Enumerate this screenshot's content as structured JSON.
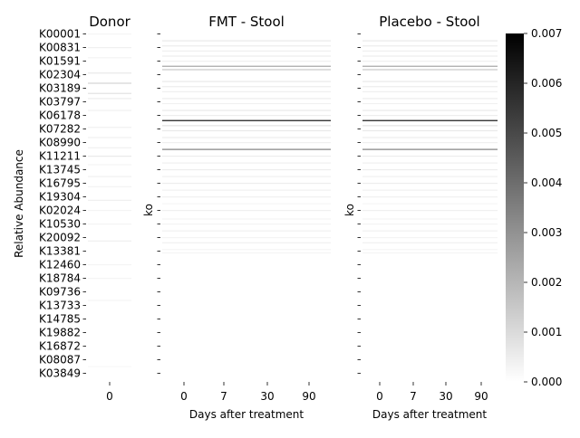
{
  "chart_data": [
    {
      "type": "heatmap",
      "title": "Donor",
      "ylabel": "Relative Abundance",
      "xlabel": "",
      "x_ticks": [
        "0"
      ],
      "y_ticks": [
        "K00001",
        "K00831",
        "K01591",
        "K02304",
        "K03189",
        "K03797",
        "K06178",
        "K07282",
        "K08990",
        "K11211",
        "K13745",
        "K16795",
        "K19304",
        "K02024",
        "K10530",
        "K20092",
        "K13381",
        "K12460",
        "K18784",
        "K09736",
        "K13733",
        "K14785",
        "K19882",
        "K16872",
        "K08087",
        "K03849"
      ],
      "rows": [
        {
          "y": 0.0,
          "v": 0.0003
        },
        {
          "y": 0.04,
          "v": 0.0004
        },
        {
          "y": 0.07,
          "v": 0.0003
        },
        {
          "y": 0.115,
          "v": 0.0006
        },
        {
          "y": 0.145,
          "v": 0.0012
        },
        {
          "y": 0.175,
          "v": 0.0008
        },
        {
          "y": 0.19,
          "v": 0.0005
        },
        {
          "y": 0.225,
          "v": 0.0004
        },
        {
          "y": 0.275,
          "v": 0.0004
        },
        {
          "y": 0.305,
          "v": 0.0004
        },
        {
          "y": 0.335,
          "v": 0.0004
        },
        {
          "y": 0.36,
          "v": 0.0006
        },
        {
          "y": 0.385,
          "v": 0.0003
        },
        {
          "y": 0.42,
          "v": 0.0004
        },
        {
          "y": 0.45,
          "v": 0.0003
        },
        {
          "y": 0.49,
          "v": 0.0004
        },
        {
          "y": 0.52,
          "v": 0.0003
        },
        {
          "y": 0.56,
          "v": 0.0003
        },
        {
          "y": 0.61,
          "v": 0.0004
        },
        {
          "y": 0.68,
          "v": 0.0003
        },
        {
          "y": 0.72,
          "v": 0.0003
        },
        {
          "y": 0.785,
          "v": 0.0003
        },
        {
          "y": 0.98,
          "v": 0.0002
        }
      ]
    },
    {
      "type": "heatmap",
      "title": "FMT - Stool",
      "ylabel": "ko",
      "xlabel": "Days after treatment",
      "x_ticks": [
        "0",
        "7",
        "30",
        "90"
      ],
      "rows": [
        {
          "y": 0.02,
          "v": 0.0006
        },
        {
          "y": 0.035,
          "v": 0.0005
        },
        {
          "y": 0.05,
          "v": 0.0004
        },
        {
          "y": 0.065,
          "v": 0.0005
        },
        {
          "y": 0.08,
          "v": 0.0004
        },
        {
          "y": 0.095,
          "v": 0.0025
        },
        {
          "y": 0.105,
          "v": 0.0015
        },
        {
          "y": 0.14,
          "v": 0.0006
        },
        {
          "y": 0.155,
          "v": 0.0005
        },
        {
          "y": 0.17,
          "v": 0.0004
        },
        {
          "y": 0.19,
          "v": 0.0005
        },
        {
          "y": 0.205,
          "v": 0.0004
        },
        {
          "y": 0.225,
          "v": 0.0006
        },
        {
          "y": 0.24,
          "v": 0.0005
        },
        {
          "y": 0.255,
          "v": 0.0065
        },
        {
          "y": 0.27,
          "v": 0.0008
        },
        {
          "y": 0.285,
          "v": 0.0006
        },
        {
          "y": 0.305,
          "v": 0.0005
        },
        {
          "y": 0.32,
          "v": 0.0004
        },
        {
          "y": 0.34,
          "v": 0.0035
        },
        {
          "y": 0.36,
          "v": 0.0005
        },
        {
          "y": 0.38,
          "v": 0.0004
        },
        {
          "y": 0.4,
          "v": 0.0005
        },
        {
          "y": 0.42,
          "v": 0.0004
        },
        {
          "y": 0.44,
          "v": 0.0005
        },
        {
          "y": 0.46,
          "v": 0.0004
        },
        {
          "y": 0.48,
          "v": 0.0004
        },
        {
          "y": 0.5,
          "v": 0.0003
        },
        {
          "y": 0.52,
          "v": 0.0004
        },
        {
          "y": 0.545,
          "v": 0.0003
        },
        {
          "y": 0.56,
          "v": 0.0003
        },
        {
          "y": 0.58,
          "v": 0.0004
        },
        {
          "y": 0.6,
          "v": 0.0003
        },
        {
          "y": 0.615,
          "v": 0.0004
        },
        {
          "y": 0.635,
          "v": 0.0003
        },
        {
          "y": 0.645,
          "v": 0.0003
        }
      ]
    },
    {
      "type": "heatmap",
      "title": "Placebo - Stool",
      "ylabel": "ko",
      "xlabel": "Days after treatment",
      "x_ticks": [
        "0",
        "7",
        "30",
        "90"
      ],
      "rows": [
        {
          "y": 0.02,
          "v": 0.0006
        },
        {
          "y": 0.035,
          "v": 0.0005
        },
        {
          "y": 0.05,
          "v": 0.0004
        },
        {
          "y": 0.065,
          "v": 0.0005
        },
        {
          "y": 0.08,
          "v": 0.0004
        },
        {
          "y": 0.095,
          "v": 0.0025
        },
        {
          "y": 0.105,
          "v": 0.0015
        },
        {
          "y": 0.14,
          "v": 0.0006
        },
        {
          "y": 0.155,
          "v": 0.0005
        },
        {
          "y": 0.17,
          "v": 0.0004
        },
        {
          "y": 0.19,
          "v": 0.0005
        },
        {
          "y": 0.205,
          "v": 0.0004
        },
        {
          "y": 0.225,
          "v": 0.0006
        },
        {
          "y": 0.24,
          "v": 0.0005
        },
        {
          "y": 0.255,
          "v": 0.0065
        },
        {
          "y": 0.27,
          "v": 0.0008
        },
        {
          "y": 0.285,
          "v": 0.0006
        },
        {
          "y": 0.305,
          "v": 0.0005
        },
        {
          "y": 0.32,
          "v": 0.0004
        },
        {
          "y": 0.34,
          "v": 0.0035
        },
        {
          "y": 0.36,
          "v": 0.0005
        },
        {
          "y": 0.38,
          "v": 0.0004
        },
        {
          "y": 0.4,
          "v": 0.0005
        },
        {
          "y": 0.42,
          "v": 0.0004
        },
        {
          "y": 0.44,
          "v": 0.0005
        },
        {
          "y": 0.46,
          "v": 0.0004
        },
        {
          "y": 0.48,
          "v": 0.0004
        },
        {
          "y": 0.5,
          "v": 0.0003
        },
        {
          "y": 0.52,
          "v": 0.0004
        },
        {
          "y": 0.545,
          "v": 0.0003
        },
        {
          "y": 0.56,
          "v": 0.0003
        },
        {
          "y": 0.58,
          "v": 0.0004
        },
        {
          "y": 0.6,
          "v": 0.0003
        },
        {
          "y": 0.615,
          "v": 0.0004
        },
        {
          "y": 0.635,
          "v": 0.0003
        },
        {
          "y": 0.645,
          "v": 0.0003
        }
      ]
    }
  ],
  "colorbar": {
    "vmin": 0.0,
    "vmax": 0.007,
    "ticks": [
      "0.000",
      "0.001",
      "0.002",
      "0.003",
      "0.004",
      "0.005",
      "0.006",
      "0.007"
    ],
    "colormap": "white-to-black"
  }
}
